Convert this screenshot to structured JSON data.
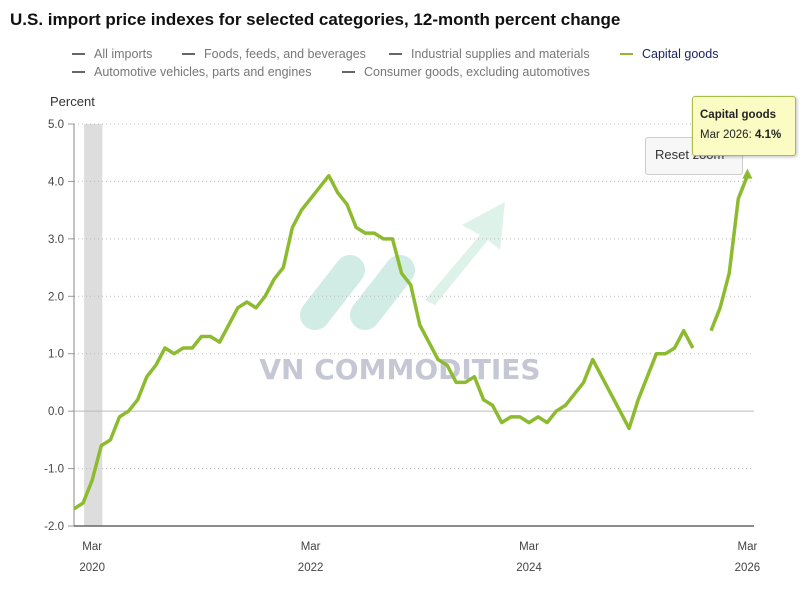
{
  "chart_data": {
    "type": "line",
    "title": "U.S. import price indexes for selected categories, 12-month percent change",
    "ylabel": "Percent",
    "ylim": [
      -2.0,
      5.0
    ],
    "yticks": [
      "5.0",
      "4.0",
      "3.0",
      "2.0",
      "1.0",
      "0.0",
      "-1.0",
      "-2.0"
    ],
    "xticks": [
      {
        "month": "Mar",
        "year": "2020"
      },
      {
        "month": "Mar",
        "year": "2022"
      },
      {
        "month": "Mar",
        "year": "2024"
      },
      {
        "month": "Mar",
        "year": "2026"
      }
    ],
    "x_start": "Jan 2020",
    "x_end": "Mar 2026",
    "grid": "horizontal dotted",
    "legend_placement": "top",
    "legend": [
      {
        "label": "All imports",
        "active": false
      },
      {
        "label": "Foods, feeds, and beverages",
        "active": false
      },
      {
        "label": "Industrial supplies and materials",
        "active": false
      },
      {
        "label": "Capital goods",
        "active": true
      },
      {
        "label": "Automotive vehicles, parts and engines",
        "active": false
      },
      {
        "label": "Consumer goods, excluding automotives",
        "active": false
      }
    ],
    "recession_shading": {
      "start": "Feb 2020",
      "end": "Apr 2020",
      "color": "#dddddd"
    },
    "series": [
      {
        "name": "Capital goods",
        "color": "#8dbb2f",
        "values": [
          -1.7,
          -1.6,
          -1.2,
          -0.6,
          -0.5,
          -0.1,
          0.0,
          0.2,
          0.6,
          0.8,
          1.1,
          1.0,
          1.1,
          1.1,
          1.3,
          1.3,
          1.2,
          1.5,
          1.8,
          1.9,
          1.8,
          2.0,
          2.3,
          2.5,
          3.2,
          3.5,
          3.7,
          3.9,
          4.1,
          3.8,
          3.6,
          3.2,
          3.1,
          3.1,
          3.0,
          3.0,
          2.4,
          2.2,
          1.5,
          1.2,
          0.9,
          0.8,
          0.5,
          0.5,
          0.6,
          0.2,
          0.1,
          -0.2,
          -0.1,
          -0.1,
          -0.2,
          -0.1,
          -0.2,
          0.0,
          0.1,
          0.3,
          0.5,
          0.9,
          0.6,
          0.3,
          0.0,
          -0.3,
          0.2,
          0.6,
          1.0,
          1.0,
          1.1,
          1.4,
          1.1,
          null,
          1.4,
          1.8,
          2.4,
          3.7,
          4.1
        ]
      }
    ]
  },
  "tooltip": {
    "series": "Capital goods",
    "label": "Mar 2026: ",
    "value": "4.1%"
  },
  "reset_zoom_label": "Reset zoom",
  "watermark": {
    "text": "VN COMMODITIES"
  }
}
